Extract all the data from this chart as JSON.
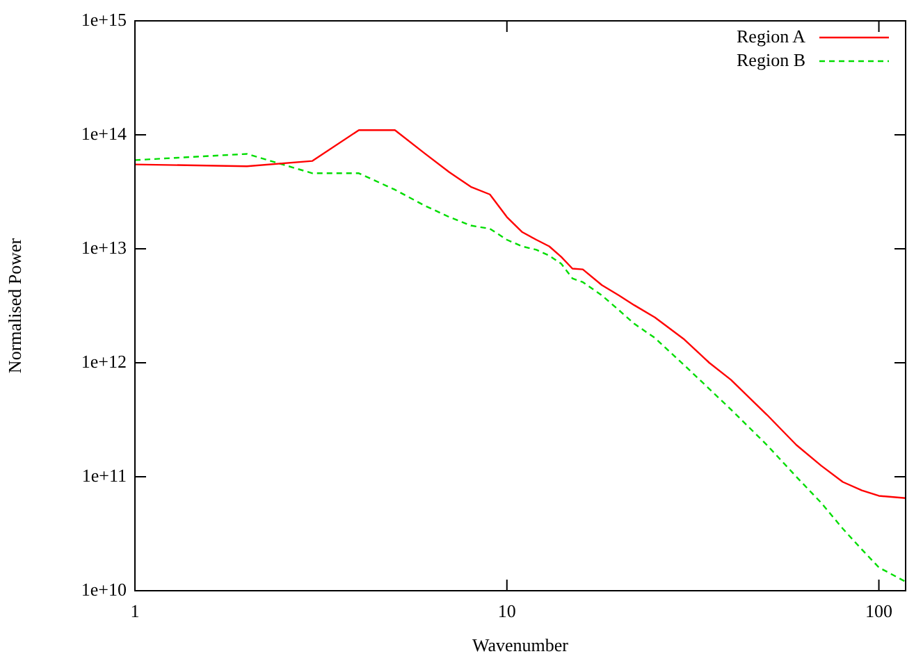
{
  "chart_data": {
    "type": "line",
    "xlabel": "Wavenumber",
    "ylabel": "Normalised Power",
    "log": "xy",
    "grid": false,
    "legend": "top right",
    "marker": "none",
    "xlim": [
      1,
      118
    ],
    "xticks": [
      1,
      10,
      100
    ],
    "ylim": [
      10000000000.0,
      1000000000000000.0
    ],
    "yticks": [
      {
        "value": 10000000000.0,
        "label": "1e+10"
      },
      {
        "value": 100000000000.0,
        "label": "1e+11"
      },
      {
        "value": 1000000000000.0,
        "label": "1e+12"
      },
      {
        "value": 10000000000000.0,
        "label": "1e+13"
      },
      {
        "value": 100000000000000.0,
        "label": "1e+14"
      },
      {
        "value": 1000000000000000.0,
        "label": "1e+15"
      }
    ],
    "x": [
      1,
      2,
      3,
      4,
      5,
      6,
      7,
      8,
      9,
      10,
      11,
      12,
      13,
      14,
      15,
      16,
      18,
      20,
      22,
      25,
      30,
      35,
      40,
      50,
      60,
      70,
      80,
      90,
      100,
      118
    ],
    "series": [
      {
        "name": "Region A",
        "color": "#ff0000",
        "line_style": "solid",
        "values": [
          55000000000000.0,
          53000000000000.0,
          59000000000000.0,
          110000000000000.0,
          110000000000000.0,
          69000000000000.0,
          47000000000000.0,
          35000000000000.0,
          30000000000000.0,
          19000000000000.0,
          14000000000000.0,
          12000000000000.0,
          10500000000000.0,
          8500000000000.0,
          6700000000000.0,
          6600000000000.0,
          4800000000000.0,
          3900000000000.0,
          3200000000000.0,
          2500000000000.0,
          1600000000000.0,
          1000000000000.0,
          710000000000.0,
          350000000000.0,
          190000000000.0,
          125000000000.0,
          90000000000.0,
          76000000000.0,
          68000000000.0,
          65000000000.0
        ]
      },
      {
        "name": "Region B",
        "color": "#00dd00",
        "line_style": "dashed",
        "values": [
          60000000000000.0,
          68000000000000.0,
          46000000000000.0,
          46000000000000.0,
          33000000000000.0,
          24000000000000.0,
          19000000000000.0,
          16000000000000.0,
          15000000000000.0,
          12000000000000.0,
          10500000000000.0,
          9800000000000.0,
          8700000000000.0,
          7400000000000.0,
          5500000000000.0,
          5100000000000.0,
          3900000000000.0,
          2900000000000.0,
          2200000000000.0,
          1650000000000.0,
          950000000000.0,
          590000000000.0,
          390000000000.0,
          190000000000.0,
          100000000000.0,
          59000000000.0,
          35000000000.0,
          23000000000.0,
          16000000000.0,
          12000000000.0
        ]
      }
    ]
  }
}
